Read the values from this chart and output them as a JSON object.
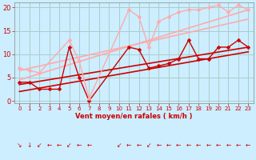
{
  "background_color": "#cceeff",
  "grid_color": "#aacccc",
  "xlim": [
    -0.5,
    23.5
  ],
  "ylim": [
    -0.5,
    21
  ],
  "xticks": [
    0,
    1,
    2,
    3,
    4,
    5,
    6,
    7,
    8,
    9,
    10,
    11,
    12,
    13,
    14,
    15,
    16,
    17,
    18,
    19,
    20,
    21,
    22,
    23
  ],
  "yticks": [
    0,
    5,
    10,
    15,
    20
  ],
  "xlabel": "Vent moyen/en rafales ( km/h )",
  "xlabel_color": "#cc0000",
  "tick_color": "#cc0000",
  "series": [
    {
      "x": [
        0,
        1,
        2,
        3,
        4,
        5,
        6,
        7,
        11,
        12,
        13,
        14,
        15,
        16,
        17,
        18,
        19,
        20,
        21,
        22,
        23
      ],
      "y": [
        4,
        4,
        2.5,
        2.5,
        2.5,
        11.5,
        5,
        0,
        11.5,
        11,
        7,
        7.5,
        8,
        9,
        13,
        9,
        9,
        11.5,
        11.5,
        13,
        11.5
      ],
      "color": "#cc0000",
      "lw": 1.0,
      "marker": "D",
      "ms": 2.5,
      "linestyle": "-"
    },
    {
      "x": [
        0,
        1,
        2,
        5,
        6,
        7,
        11,
        12,
        13,
        14,
        15,
        16,
        17,
        18,
        19,
        20,
        21,
        22,
        23
      ],
      "y": [
        7,
        6.5,
        6,
        13,
        8.5,
        0.5,
        19.5,
        18,
        11.5,
        17,
        18,
        19,
        19.5,
        19.5,
        20,
        20.5,
        19,
        20.5,
        19.5
      ],
      "color": "#ffaaaa",
      "lw": 1.0,
      "marker": "D",
      "ms": 2.5,
      "linestyle": "-"
    },
    {
      "x": [
        0,
        23
      ],
      "y": [
        2.0,
        10.5
      ],
      "color": "#cc0000",
      "lw": 1.2,
      "marker": null,
      "linestyle": "-"
    },
    {
      "x": [
        0,
        23
      ],
      "y": [
        3.5,
        11.5
      ],
      "color": "#cc0000",
      "lw": 1.2,
      "marker": null,
      "linestyle": "-"
    },
    {
      "x": [
        0,
        23
      ],
      "y": [
        4.5,
        19.5
      ],
      "color": "#ffaaaa",
      "lw": 1.2,
      "marker": null,
      "linestyle": "-"
    },
    {
      "x": [
        0,
        23
      ],
      "y": [
        6.5,
        17.5
      ],
      "color": "#ffaaaa",
      "lw": 1.2,
      "marker": null,
      "linestyle": "-"
    }
  ],
  "wind_arrows": {
    "positions": [
      0,
      1,
      2,
      3,
      4,
      5,
      6,
      7,
      10,
      11,
      12,
      13,
      14,
      15,
      16,
      17,
      18,
      19,
      20,
      21,
      22,
      23
    ],
    "symbols": [
      "↘",
      "↓",
      "↙",
      "←",
      "←",
      "↙",
      "←",
      "←",
      "↙",
      "←",
      "←",
      "↙",
      "←",
      "←",
      "←",
      "←",
      "←",
      "←",
      "←",
      "←",
      "←",
      "←"
    ],
    "color": "#cc0000",
    "fontsize": 5.5,
    "y": -0.38
  }
}
